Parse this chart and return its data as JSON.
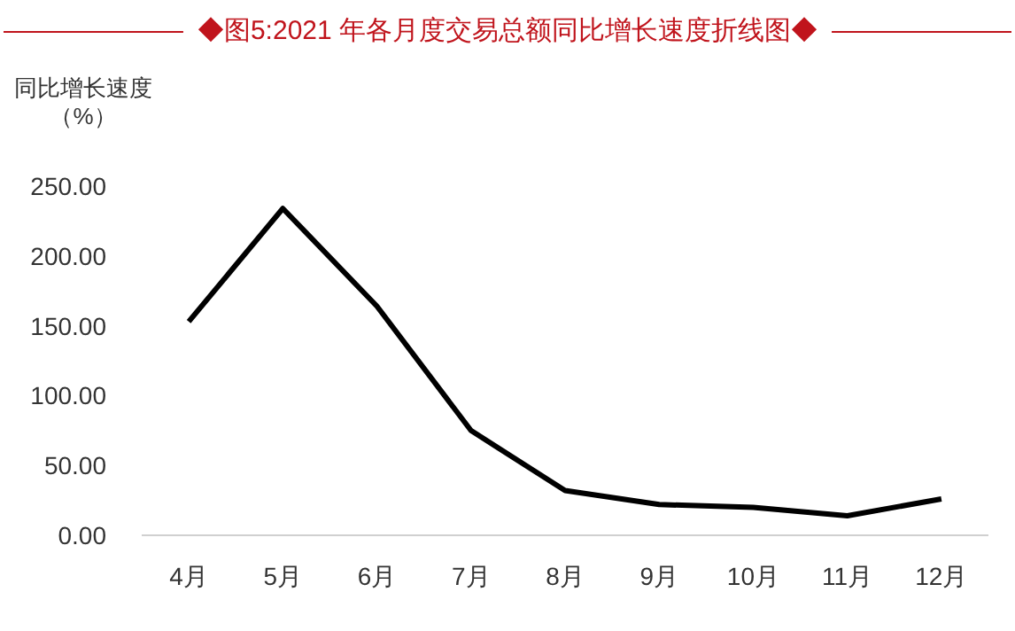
{
  "chart_data": {
    "type": "line",
    "title": "◆图5:2021 年各月度交易总额同比增长速度折线图◆",
    "ylabel": "同比增长速度（%）",
    "categories": [
      "4月",
      "5月",
      "6月",
      "7月",
      "8月",
      "9月",
      "10月",
      "11月",
      "12月"
    ],
    "series": [
      {
        "color": "#000000",
        "values": [
          153,
          234,
          164,
          75,
          32,
          22,
          20,
          14,
          26
        ]
      }
    ],
    "ylim": [
      0,
      250
    ],
    "yticks": [
      {
        "value": 0,
        "label": "0.00"
      },
      {
        "value": 50,
        "label": "50.00"
      },
      {
        "value": 100,
        "label": "100.00"
      },
      {
        "value": 150,
        "label": "150.00"
      },
      {
        "value": 200,
        "label": "200.00"
      },
      {
        "value": 250,
        "label": "250.00"
      }
    ]
  }
}
